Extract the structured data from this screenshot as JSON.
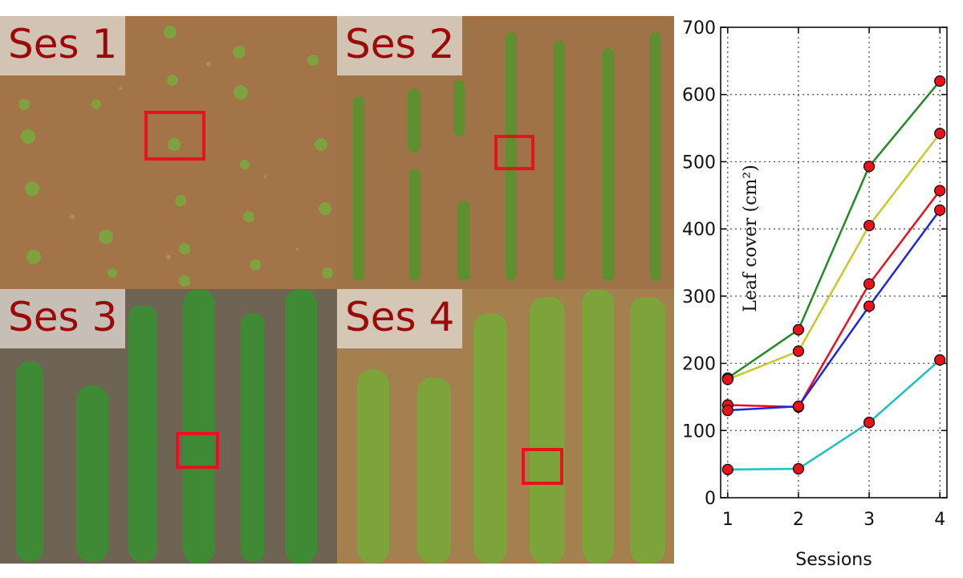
{
  "panels": [
    {
      "label": "Ses 1"
    },
    {
      "label": "Ses 2"
    },
    {
      "label": "Ses 3"
    },
    {
      "label": "Ses 4"
    }
  ],
  "colors": {
    "ses1_soil": "#a27447",
    "ses2_soil": "#9f7347",
    "ses3_soil": "#6f6454",
    "ses4_soil": "#a4804f",
    "plant": "#6e9a34",
    "plant_dark": "#2f7a2c",
    "highlight_box": "#e8121c",
    "marker_fill": "#e8121c"
  },
  "chart_data": {
    "type": "line",
    "x": [
      1,
      2,
      3,
      4
    ],
    "xlabel": "Sessions",
    "ylabel": "Leaf cover",
    "ylabel_unit": "(cm²)",
    "xlim": [
      0.9,
      4.1
    ],
    "ylim": [
      0,
      700
    ],
    "xticks": [
      1,
      2,
      3,
      4
    ],
    "yticks": [
      0,
      100,
      200,
      300,
      400,
      500,
      600,
      700
    ],
    "grid": true,
    "series": [
      {
        "color": "#228b22",
        "values": [
          178,
          250,
          493,
          620
        ]
      },
      {
        "color": "#c8c82a",
        "values": [
          176,
          218,
          405,
          542
        ]
      },
      {
        "color": "#e8121c",
        "values": [
          138,
          135,
          318,
          457
        ]
      },
      {
        "color": "#1c28e0",
        "values": [
          130,
          136,
          285,
          428
        ]
      },
      {
        "color": "#20c0c0",
        "values": [
          42,
          43,
          112,
          205
        ]
      }
    ]
  }
}
